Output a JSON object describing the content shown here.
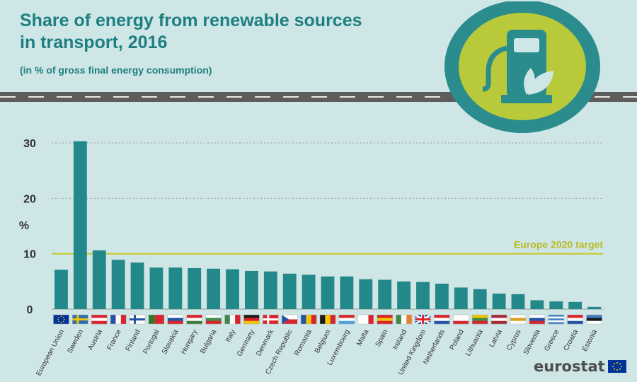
{
  "header": {
    "title_line1": "Share of energy from renewable sources",
    "title_line2": "in transport, 2016",
    "subtitle": "(in % of gross final energy consumption)"
  },
  "logo": {
    "text": "eurostat"
  },
  "colors": {
    "bar": "#22888a",
    "target": "#c5cc2c",
    "title": "#1d7f80",
    "background": "#cfe6e6",
    "badge_ring": "#2a8c8d",
    "badge_fill": "#b8c93a"
  },
  "chart_data": {
    "type": "bar",
    "ylabel": "%",
    "ylim": [
      0,
      30
    ],
    "yticks": [
      "0",
      "10",
      "20",
      "30"
    ],
    "grid": true,
    "categories": [
      "European Union",
      "Sweden",
      "Austria",
      "France",
      "Finland",
      "Portugal",
      "Slovakia",
      "Hungary",
      "Bulgaria",
      "Italy",
      "Germany",
      "Denmark",
      "Czech Republic",
      "Romania",
      "Belgium",
      "Luxembourg",
      "Malta",
      "Spain",
      "Ireland",
      "United Kingdom",
      "Netherlands",
      "Poland",
      "Lithuania",
      "Latvia",
      "Cyprus",
      "Slovenia",
      "Greece",
      "Croatia",
      "Estonia"
    ],
    "values": [
      7.1,
      30.3,
      10.6,
      8.9,
      8.4,
      7.5,
      7.5,
      7.4,
      7.3,
      7.2,
      6.9,
      6.8,
      6.4,
      6.2,
      5.9,
      5.9,
      5.4,
      5.3,
      5.0,
      4.9,
      4.6,
      3.9,
      3.6,
      2.8,
      2.7,
      1.6,
      1.4,
      1.3,
      0.4
    ],
    "target": {
      "label": "Europe 2020 target",
      "value": 10
    }
  },
  "flags": [
    {
      "kind": "eu"
    },
    {
      "kind": "nordic",
      "bg": "#2a6db5",
      "cross": "#f2c500"
    },
    {
      "kind": "h",
      "c": [
        "#d8242c",
        "#ffffff",
        "#d8242c"
      ]
    },
    {
      "kind": "v",
      "c": [
        "#2452a4",
        "#ffffff",
        "#d8242c"
      ]
    },
    {
      "kind": "nordic",
      "bg": "#ffffff",
      "cross": "#2452a4"
    },
    {
      "kind": "v2",
      "c": [
        "#2d7a2a",
        "#d8242c"
      ]
    },
    {
      "kind": "h",
      "c": [
        "#ffffff",
        "#2452a4",
        "#d8242c"
      ]
    },
    {
      "kind": "h",
      "c": [
        "#d8242c",
        "#ffffff",
        "#3f7a3a"
      ]
    },
    {
      "kind": "h",
      "c": [
        "#ffffff",
        "#3f8a4a",
        "#d8242c"
      ]
    },
    {
      "kind": "v",
      "c": [
        "#3f8a4a",
        "#ffffff",
        "#d8242c"
      ]
    },
    {
      "kind": "h",
      "c": [
        "#1b1b1b",
        "#d8242c",
        "#f2c500"
      ]
    },
    {
      "kind": "nordic",
      "bg": "#d8242c",
      "cross": "#ffffff"
    },
    {
      "kind": "czech"
    },
    {
      "kind": "v",
      "c": [
        "#2452a4",
        "#f2c500",
        "#d8242c"
      ]
    },
    {
      "kind": "v",
      "c": [
        "#1b1b1b",
        "#f2c500",
        "#d8242c"
      ]
    },
    {
      "kind": "h",
      "c": [
        "#d8242c",
        "#ffffff",
        "#4aa3df"
      ]
    },
    {
      "kind": "v",
      "c": [
        "#ffffff",
        "#ffffff",
        "#d8242c"
      ]
    },
    {
      "kind": "h",
      "c": [
        "#d8242c",
        "#f2c500",
        "#d8242c"
      ]
    },
    {
      "kind": "v",
      "c": [
        "#3f8a4a",
        "#ffffff",
        "#e87f2c"
      ]
    },
    {
      "kind": "uk"
    },
    {
      "kind": "h",
      "c": [
        "#d8242c",
        "#ffffff",
        "#2452a4"
      ]
    },
    {
      "kind": "h",
      "c": [
        "#ffffff",
        "#ffffff",
        "#d8242c"
      ]
    },
    {
      "kind": "h",
      "c": [
        "#f2c500",
        "#3f8a4a",
        "#d8242c"
      ]
    },
    {
      "kind": "h",
      "c": [
        "#a32a32",
        "#ffffff",
        "#a32a32"
      ]
    },
    {
      "kind": "h",
      "c": [
        "#ffffff",
        "#e0a020",
        "#ffffff"
      ]
    },
    {
      "kind": "h",
      "c": [
        "#ffffff",
        "#2452a4",
        "#d8242c"
      ]
    },
    {
      "kind": "stripes",
      "c": [
        "#3f7fc6",
        "#ffffff"
      ]
    },
    {
      "kind": "h",
      "c": [
        "#d8242c",
        "#ffffff",
        "#2452a4"
      ]
    },
    {
      "kind": "h",
      "c": [
        "#3f7fc6",
        "#1b1b1b",
        "#ffffff"
      ]
    }
  ]
}
